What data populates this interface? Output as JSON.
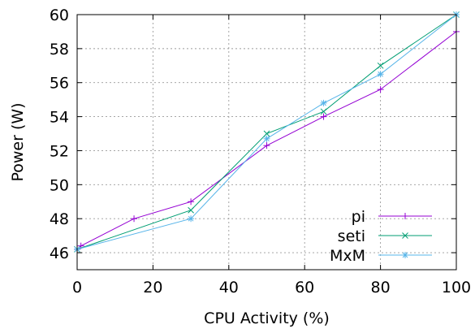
{
  "chart_data": {
    "type": "line",
    "title": "",
    "xlabel": "CPU Activity (%)",
    "ylabel": "Power (W)",
    "xlim": [
      0,
      100
    ],
    "ylim": [
      45,
      60
    ],
    "xticks": [
      0,
      20,
      40,
      60,
      80,
      100
    ],
    "yticks": [
      46,
      48,
      50,
      52,
      54,
      56,
      58,
      60
    ],
    "grid": true,
    "legend_position": "bottom-right",
    "series": [
      {
        "name": "pi",
        "color": "#9400d3",
        "marker": "plus",
        "x": [
          0,
          1,
          15,
          30,
          50,
          65,
          80,
          100
        ],
        "y": [
          46.2,
          46.4,
          48.0,
          49.0,
          52.3,
          54.0,
          55.6,
          59.0
        ]
      },
      {
        "name": "seti",
        "color": "#009e73",
        "marker": "cross",
        "x": [
          0,
          30,
          50,
          65,
          80,
          100
        ],
        "y": [
          46.2,
          48.5,
          53.0,
          54.3,
          57.0,
          60.0
        ]
      },
      {
        "name": "MxM",
        "color": "#56b4e9",
        "marker": "star",
        "x": [
          0,
          30,
          50,
          65,
          80,
          100
        ],
        "y": [
          46.2,
          48.0,
          52.7,
          54.8,
          56.5,
          60.0
        ]
      }
    ]
  }
}
